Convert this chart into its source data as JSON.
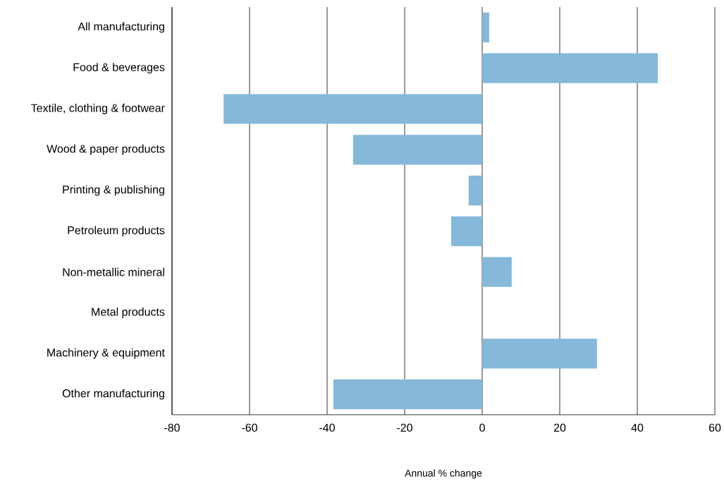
{
  "chart_data": {
    "type": "bar",
    "orientation": "horizontal",
    "xlabel": "Annual % change",
    "categories": [
      "All manufacturing",
      "Food & beverages",
      "Textile, clothing & footwear",
      "Wood & paper products",
      "Printing & publishing",
      "Petroleum products",
      "Non-metallic mineral",
      "Metal products",
      "Machinery & equipment",
      "Other manufacturing"
    ],
    "values": [
      1.8,
      45.3,
      -66.7,
      -33.3,
      -3.5,
      -8,
      7.6,
      0,
      29.6,
      -38.4
    ],
    "color": "#85b8d9",
    "xlim": [
      -80,
      60
    ],
    "xticks": [
      -80,
      -60,
      -40,
      -20,
      0,
      20,
      40,
      60
    ],
    "grid": "x"
  }
}
